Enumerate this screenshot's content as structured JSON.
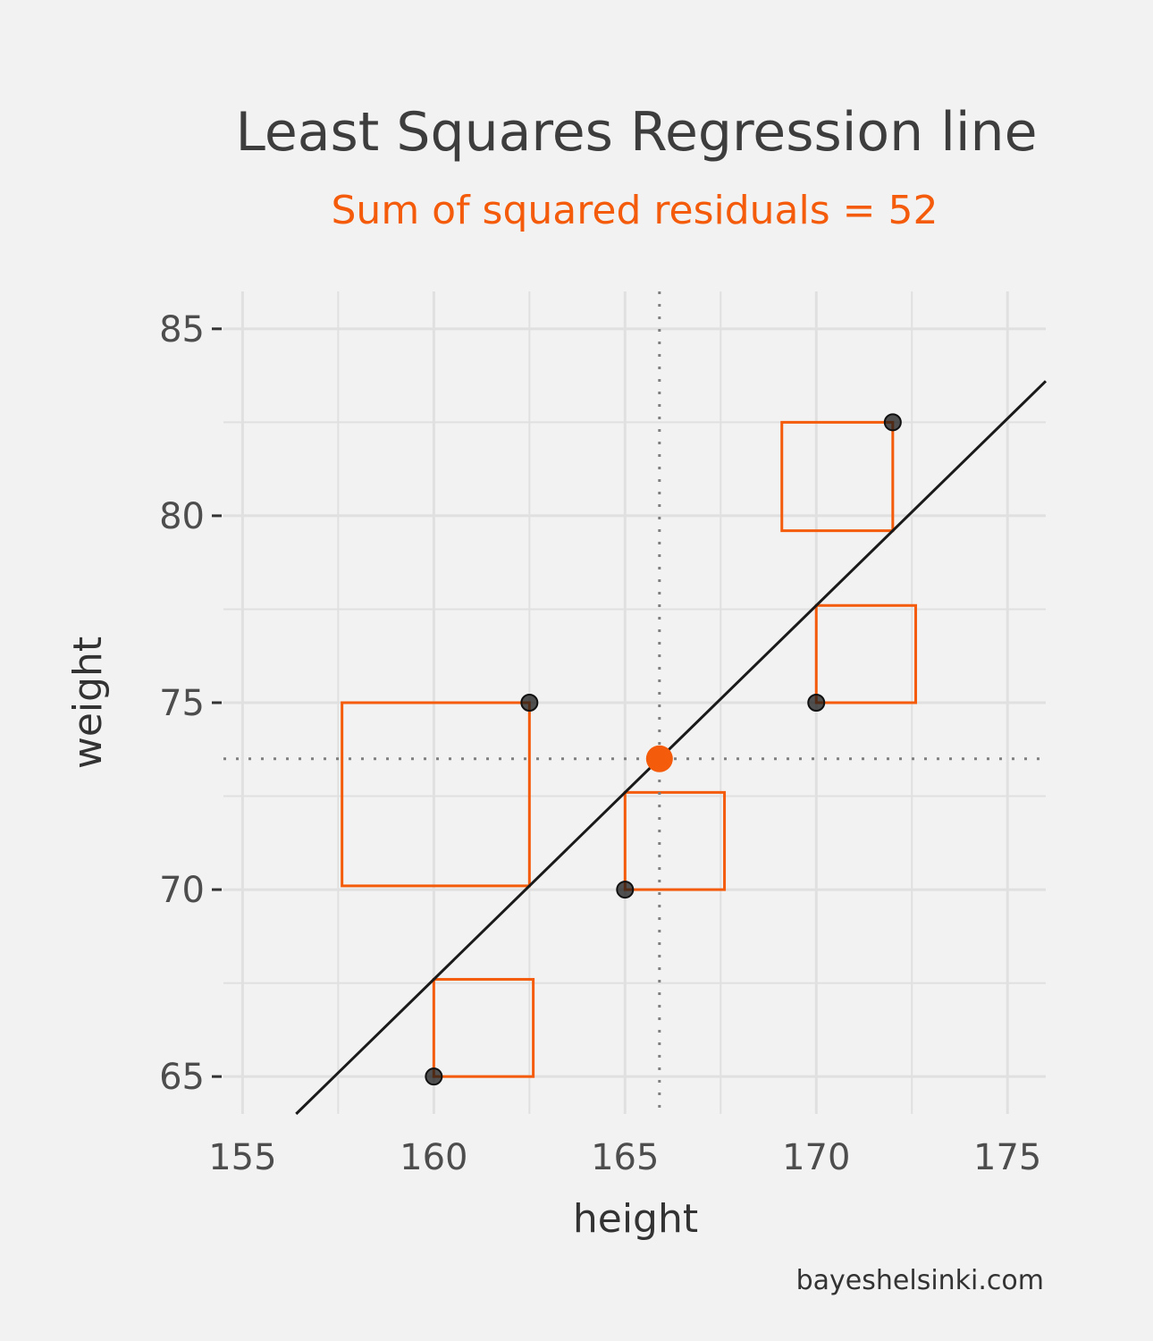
{
  "chart_data": {
    "type": "scatter",
    "title": "Least Squares Regression line",
    "subtitle": "Sum of squared residuals = 52",
    "xlabel": "height",
    "ylabel": "weight",
    "caption": "bayeshelsinki.com",
    "xlim": [
      154.5,
      176
    ],
    "ylim": [
      64,
      86
    ],
    "x_ticks": [
      155,
      160,
      165,
      170,
      175
    ],
    "y_ticks": [
      65,
      70,
      75,
      80,
      85
    ],
    "grid": true,
    "points": [
      {
        "x": 160,
        "y": 65
      },
      {
        "x": 162.5,
        "y": 75
      },
      {
        "x": 165,
        "y": 70
      },
      {
        "x": 170,
        "y": 75
      },
      {
        "x": 172,
        "y": 82.5
      }
    ],
    "regression_line": {
      "slope": 1.0,
      "intercept": -92.4
    },
    "mean_point": {
      "x": 165.9,
      "y": 73.5
    },
    "colors": {
      "accent": "#f45b0a",
      "points": "#1a1a1a",
      "line": "#1a1a1a",
      "guides": "#7f7f7f",
      "grid": "#e0e0e0"
    }
  }
}
